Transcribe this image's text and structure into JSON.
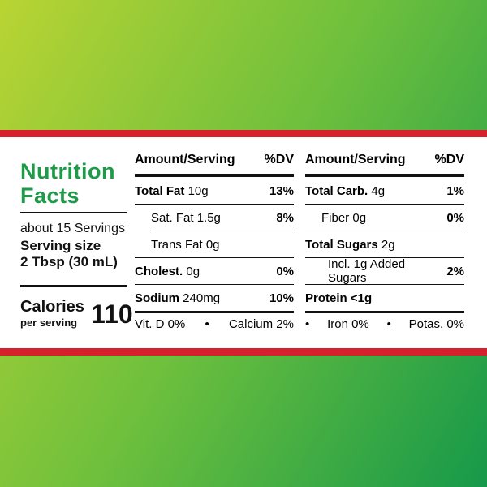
{
  "title_line1": "Nutrition",
  "title_line2": "Facts",
  "servings": "about 15 Servings",
  "serving_size_label": "Serving size",
  "serving_size": "2 Tbsp (30 mL)",
  "calories_label": "Calories",
  "calories_sub": "per serving",
  "calories": 110,
  "columns": [
    {
      "header": {
        "amount": "Amount/Serving",
        "dv": "%DV"
      },
      "rows": [
        {
          "name": "Total Fat",
          "amount": "10g",
          "dv": "13%"
        },
        {
          "name": "Sat. Fat",
          "amount": "1.5g",
          "dv": "8%"
        },
        {
          "name": "Trans Fat",
          "amount": "0g"
        },
        {
          "name": "Cholest.",
          "amount": "0g",
          "dv": "0%"
        },
        {
          "name": "Sodium",
          "amount": "240mg",
          "dv": "10%"
        }
      ],
      "footer": [
        "Vit. D 0%",
        "•",
        "Calcium 2%"
      ]
    },
    {
      "header": {
        "amount": "Amount/Serving",
        "dv": "%DV"
      },
      "rows": [
        {
          "name": "Total Carb.",
          "amount": "4g",
          "dv": "1%"
        },
        {
          "name": "Fiber",
          "amount": "0g",
          "dv": "0%"
        },
        {
          "name": "Total Sugars",
          "amount": "2g"
        },
        {
          "name": "Incl. 1g Added Sugars",
          "dv": "2%"
        },
        {
          "name": "Protein",
          "amount": "<1g"
        }
      ],
      "footer": [
        "•",
        "Iron 0%",
        "•",
        "Potas. 0%"
      ]
    }
  ]
}
